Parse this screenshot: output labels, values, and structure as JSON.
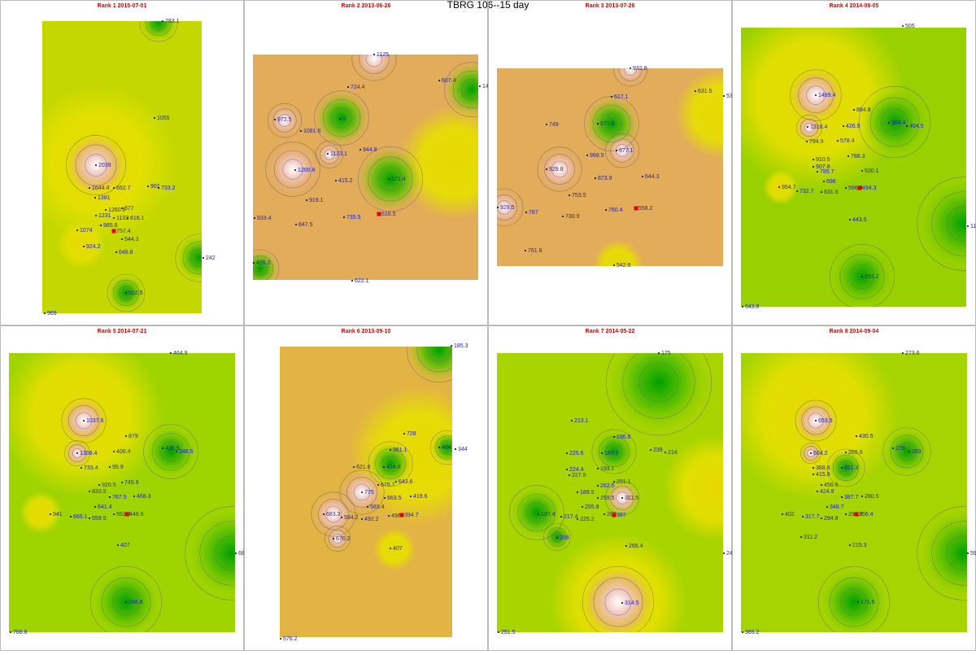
{
  "title": "TBRG 106--15 day",
  "panels": [
    {
      "title": "Rank 1 2015-07-01",
      "stations": [
        783.1,
        1055,
        2039,
        1644.4,
        652.7,
        901,
        733.2,
        1381,
        1260.8,
        1231,
        677,
        1132,
        616.1,
        985.6,
        1074,
        757.4,
        544.3,
        924.2,
        646.8,
        502.5,
        242,
        969
      ]
    },
    {
      "title": "Rank 2 2013-06-26",
      "stations": [
        1125,
        724.4,
        607.4,
        14,
        972.5,
        0,
        1081.8,
        1123.1,
        944.8,
        1200.8,
        415.2,
        173.4,
        919.1,
        933.4,
        847.5,
        735.5,
        618.5,
        426.2,
        622.1
      ]
    },
    {
      "title": "Rank 3 2013-07-26",
      "stations": [
        932.8,
        631.5,
        53,
        517.1,
        749,
        571.9,
        968.5,
        977.1,
        929.8,
        873.9,
        644.3,
        753.5,
        929.5,
        767,
        730.9,
        760.4,
        558.2,
        761.8,
        542.6
      ]
    },
    {
      "title": "Rank 4 2014-08-05",
      "stations": [
        505,
        1489.4,
        884.8,
        1318.4,
        426.9,
        504.4,
        404.5,
        794.9,
        578.4,
        910.5,
        788.3,
        907.8,
        785.7,
        530.1,
        696,
        954.7,
        732.7,
        631.8,
        596.9,
        494.3,
        443.5,
        11,
        293.2,
        643.8
      ]
    },
    {
      "title": "Rank 5 2014-07-21",
      "stations": [
        464.9,
        1037.6,
        879,
        1308.4,
        400.4,
        436.5,
        346.5,
        733.4,
        95.9,
        920.5,
        745.9,
        833.5,
        767.5,
        468.3,
        641.4,
        941,
        665.1,
        559.5,
        553.9,
        446.9,
        407,
        68,
        248.8,
        766.8
      ]
    },
    {
      "title": "Rank 6 2013-09-10",
      "stations": [
        185.3,
        728,
        404,
        344,
        361.1,
        621.6,
        424.8,
        675.7,
        643.6,
        775,
        663.5,
        419.6,
        583.4,
        683.3,
        584.2,
        492.2,
        496,
        394.7,
        676.2,
        407,
        576.2
      ]
    },
    {
      "title": "Rank 7 2014-05-22",
      "stations": [
        175,
        213.1,
        196.8,
        225.6,
        187.3,
        239,
        214,
        224.4,
        193.1,
        227.9,
        201.1,
        262.5,
        189.5,
        259.5,
        311.5,
        255.8,
        187.4,
        217.4,
        225.2,
        263,
        387,
        205,
        266.4,
        24,
        314.5,
        251.5
      ]
    },
    {
      "title": "Rank 8 2014-09-04",
      "stations": [
        273.6,
        653.5,
        430.5,
        604.2,
        265.9,
        278,
        283,
        368.9,
        311.3,
        415.9,
        456.6,
        280.5,
        424.9,
        387.7,
        348.7,
        402,
        317.7,
        294.8,
        294.8,
        256.4,
        311.2,
        215.3,
        59,
        171.5,
        365.2
      ]
    }
  ]
}
